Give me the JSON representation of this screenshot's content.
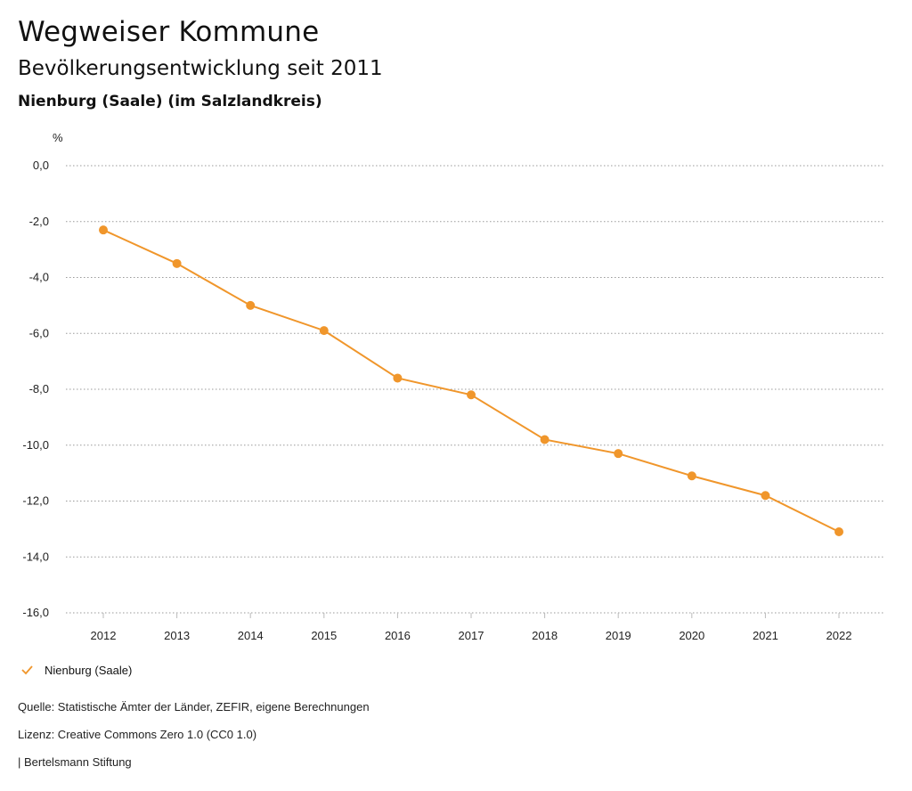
{
  "header": {
    "title": "Wegweiser Kommune",
    "subtitle": "Bevölkerungsentwicklung seit 2011",
    "region": "Nienburg (Saale) (im Salzlandkreis)"
  },
  "chart_data": {
    "type": "line",
    "ylabel": "%",
    "xlabel": "",
    "ylim": [
      -16,
      0
    ],
    "yticks": [
      0,
      -2,
      -4,
      -6,
      -8,
      -10,
      -12,
      -14,
      -16
    ],
    "ytick_labels": [
      "0,0",
      "-2,0",
      "-4,0",
      "-6,0",
      "-8,0",
      "-10,0",
      "-12,0",
      "-14,0",
      "-16,0"
    ],
    "categories": [
      "2012",
      "2013",
      "2014",
      "2015",
      "2016",
      "2017",
      "2018",
      "2019",
      "2020",
      "2021",
      "2022"
    ],
    "series": [
      {
        "name": "Nienburg (Saale)",
        "color": "#f0962b",
        "values": [
          -2.3,
          -3.5,
          -5.0,
          -5.9,
          -7.6,
          -8.2,
          -9.8,
          -10.3,
          -11.1,
          -11.8,
          -13.1
        ]
      }
    ],
    "grid": true,
    "legend_position": "bottom-left"
  },
  "footer": {
    "source": "Quelle: Statistische Ämter der Länder, ZEFIR, eigene Berechnungen",
    "license": "Lizenz: Creative Commons Zero 1.0 (CC0 1.0)",
    "publisher": "| Bertelsmann Stiftung"
  }
}
